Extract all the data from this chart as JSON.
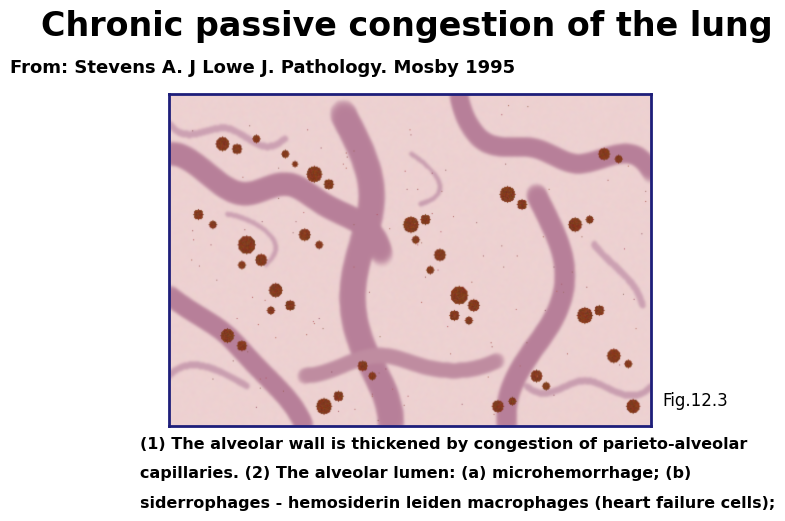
{
  "title": "Chronic passive congestion of the lung",
  "subtitle": "From: Stevens A. J Lowe J. Pathology. Mosby 1995",
  "fig_label": "Fig.12.3",
  "caption_line1": "(1) The alveolar wall is thickened by congestion of parieto-alveolar",
  "caption_line2": "capillaries. (2) The alveolar lumen: (a) microhemorrhage; (b)",
  "caption_line3": "siderrophages - hemosiderin leiden macrophages (heart failure cells);",
  "bg_color": "#ffffff",
  "title_fontsize": 24,
  "subtitle_fontsize": 13,
  "caption_fontsize": 11.5,
  "fig_label_fontsize": 12,
  "image_border_color": "#1e1e7a",
  "image_bg_r": 0.93,
  "image_bg_g": 0.82,
  "image_bg_b": 0.82
}
